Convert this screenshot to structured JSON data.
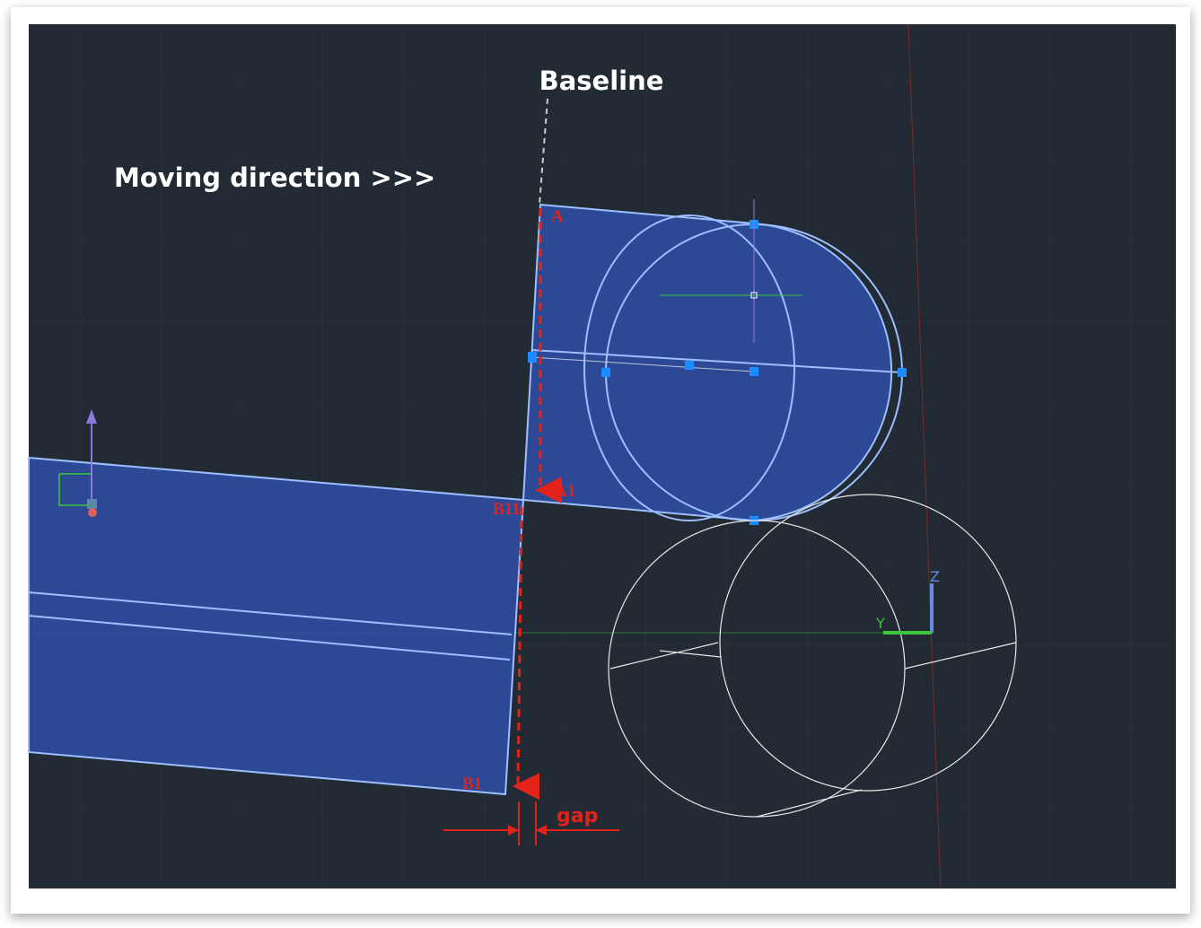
{
  "annotations": {
    "baseline": "Baseline",
    "moving_direction": "Moving direction >>>",
    "gap": "gap"
  },
  "points": {
    "a": "A",
    "a1": "A1",
    "b11": "B11",
    "b1": "B1"
  },
  "axes": {
    "z": "Z",
    "y": "Y"
  }
}
